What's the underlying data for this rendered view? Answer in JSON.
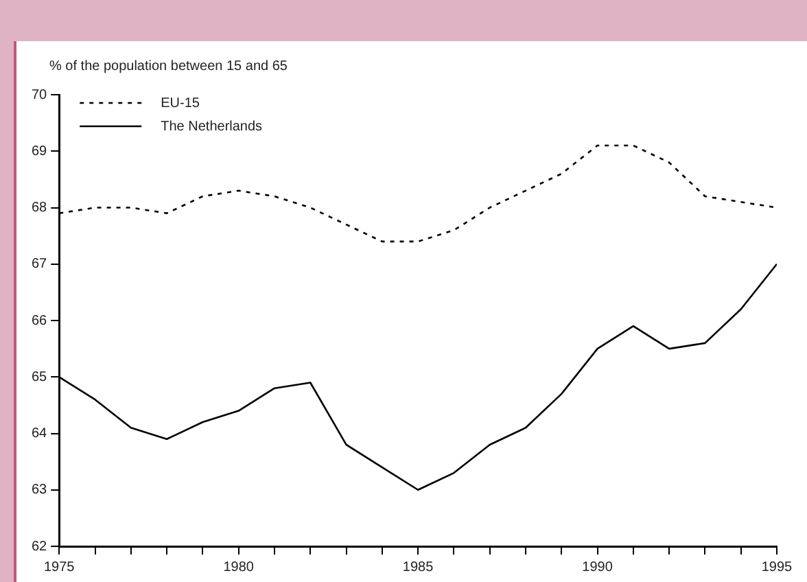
{
  "chart_data": {
    "type": "line",
    "ylabel": "% of the population between 15 and 65",
    "x": [
      1975,
      1976,
      1977,
      1978,
      1979,
      1980,
      1981,
      1982,
      1983,
      1984,
      1985,
      1986,
      1987,
      1988,
      1989,
      1990,
      1991,
      1992,
      1993,
      1994,
      1995
    ],
    "series": [
      {
        "name": "EU-15",
        "color": "#000000",
        "line_style": "dotted",
        "values": [
          67.9,
          68.0,
          68.0,
          67.9,
          68.2,
          68.3,
          68.2,
          68.0,
          67.7,
          67.4,
          67.4,
          67.6,
          68.0,
          68.3,
          68.6,
          69.1,
          69.1,
          68.8,
          68.2,
          68.1,
          68.0
        ]
      },
      {
        "name": "The Netherlands",
        "color": "#000000",
        "line_style": "solid",
        "values": [
          65.0,
          64.6,
          64.1,
          63.9,
          64.2,
          64.4,
          64.8,
          64.9,
          63.8,
          63.4,
          63.0,
          63.3,
          63.8,
          64.1,
          64.7,
          65.5,
          65.9,
          65.5,
          65.6,
          66.2,
          67.0
        ]
      }
    ],
    "xlim": [
      1975,
      1995
    ],
    "xticks": [
      1975,
      {
        "value": 1976,
        "label": null
      },
      {
        "value": 1977,
        "label": null
      },
      {
        "value": 1978,
        "label": null
      },
      {
        "value": 1979,
        "label": null
      },
      1980,
      {
        "value": 1981,
        "label": null
      },
      {
        "value": 1982,
        "label": null
      },
      {
        "value": 1983,
        "label": null
      },
      {
        "value": 1984,
        "label": null
      },
      1985,
      {
        "value": 1986,
        "label": null
      },
      {
        "value": 1987,
        "label": null
      },
      {
        "value": 1988,
        "label": null
      },
      {
        "value": 1989,
        "label": null
      },
      1990,
      {
        "value": 1991,
        "label": null
      },
      {
        "value": 1992,
        "label": null
      },
      {
        "value": 1993,
        "label": null
      },
      {
        "value": 1994,
        "label": null
      },
      1995
    ],
    "ylim": [
      62,
      70
    ],
    "yticks": [
      62,
      63,
      64,
      65,
      66,
      67,
      68,
      69,
      70
    ],
    "grid": false,
    "legend": "top left",
    "marker": "none"
  }
}
